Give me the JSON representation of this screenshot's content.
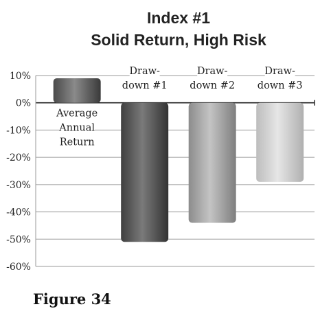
{
  "chart_data": {
    "type": "bar",
    "title_lines": [
      "Index #1",
      "Solid Return, High Risk"
    ],
    "categories": [
      [
        "Average",
        "Annual",
        "Return"
      ],
      [
        "Draw-",
        "down #1"
      ],
      [
        "Draw-",
        "down #2"
      ],
      [
        "Draw-",
        "down #3"
      ]
    ],
    "values": [
      9,
      -51,
      -44,
      -29
    ],
    "bar_colors": [
      "#6a6a6a",
      "#5e5e5e",
      "#a2a2a2",
      "#cfcfcf"
    ],
    "y_ticks": [
      "10%",
      "0%",
      "-10%",
      "-20%",
      "-30%",
      "-40%",
      "-50%",
      "-60%"
    ],
    "y_tick_values": [
      10,
      0,
      -10,
      -20,
      -30,
      -40,
      -50,
      -60
    ],
    "ylim": [
      -60,
      10
    ],
    "grid": true,
    "xlabel": "",
    "ylabel": ""
  },
  "figure_label": "Figure 34"
}
